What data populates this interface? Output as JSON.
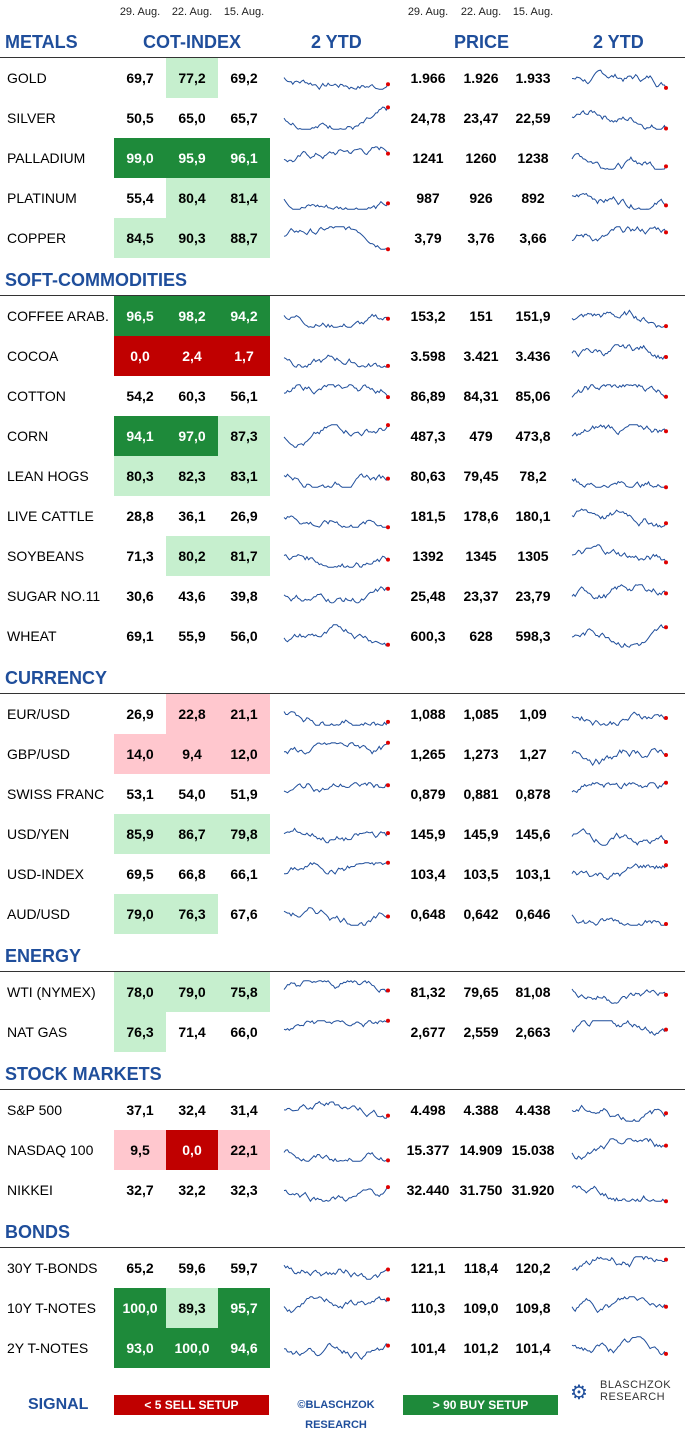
{
  "dates_cot": [
    "29. Aug.",
    "22. Aug.",
    "15. Aug."
  ],
  "dates_price": [
    "29. Aug.",
    "22. Aug.",
    "15. Aug."
  ],
  "headers": {
    "cot": "COT-INDEX",
    "ytd1": "2 YTD",
    "price": "PRICE",
    "ytd2": "2 YTD"
  },
  "sections": [
    {
      "title": "METALS",
      "rows": [
        {
          "name": "GOLD",
          "cot": [
            "69,7",
            "77,2",
            "69,2"
          ],
          "cot_levels": [
            "none",
            "buy-light",
            "none"
          ],
          "price": [
            "1.966",
            "1.926",
            "1.933"
          ]
        },
        {
          "name": "SILVER",
          "cot": [
            "50,5",
            "65,0",
            "65,7"
          ],
          "cot_levels": [
            "none",
            "none",
            "none"
          ],
          "price": [
            "24,78",
            "23,47",
            "22,59"
          ]
        },
        {
          "name": "PALLADIUM",
          "cot": [
            "99,0",
            "95,9",
            "96,1"
          ],
          "cot_levels": [
            "buy",
            "buy",
            "buy"
          ],
          "price": [
            "1241",
            "1260",
            "1238"
          ]
        },
        {
          "name": "PLATINUM",
          "cot": [
            "55,4",
            "80,4",
            "81,4"
          ],
          "cot_levels": [
            "none",
            "buy-light",
            "buy-light"
          ],
          "price": [
            "987",
            "926",
            "892"
          ]
        },
        {
          "name": "COPPER",
          "cot": [
            "84,5",
            "90,3",
            "88,7"
          ],
          "cot_levels": [
            "buy-light",
            "buy-light",
            "buy-light"
          ],
          "price": [
            "3,79",
            "3,76",
            "3,66"
          ]
        }
      ]
    },
    {
      "title": "SOFT-COMMODITIES",
      "rows": [
        {
          "name": "COFFEE ARAB.",
          "cot": [
            "96,5",
            "98,2",
            "94,2"
          ],
          "cot_levels": [
            "buy",
            "buy",
            "buy"
          ],
          "price": [
            "153,2",
            "151",
            "151,9"
          ]
        },
        {
          "name": "COCOA",
          "cot": [
            "0,0",
            "2,4",
            "1,7"
          ],
          "cot_levels": [
            "sell",
            "sell",
            "sell"
          ],
          "price": [
            "3.598",
            "3.421",
            "3.436"
          ]
        },
        {
          "name": "COTTON",
          "cot": [
            "54,2",
            "60,3",
            "56,1"
          ],
          "cot_levels": [
            "none",
            "none",
            "none"
          ],
          "price": [
            "86,89",
            "84,31",
            "85,06"
          ]
        },
        {
          "name": "CORN",
          "cot": [
            "94,1",
            "97,0",
            "87,3"
          ],
          "cot_levels": [
            "buy",
            "buy",
            "buy-light"
          ],
          "price": [
            "487,3",
            "479",
            "473,8"
          ]
        },
        {
          "name": "LEAN HOGS",
          "cot": [
            "80,3",
            "82,3",
            "83,1"
          ],
          "cot_levels": [
            "buy-light",
            "buy-light",
            "buy-light"
          ],
          "price": [
            "80,63",
            "79,45",
            "78,2"
          ]
        },
        {
          "name": "LIVE CATTLE",
          "cot": [
            "28,8",
            "36,1",
            "26,9"
          ],
          "cot_levels": [
            "none",
            "none",
            "none"
          ],
          "price": [
            "181,5",
            "178,6",
            "180,1"
          ]
        },
        {
          "name": "SOYBEANS",
          "cot": [
            "71,3",
            "80,2",
            "81,7"
          ],
          "cot_levels": [
            "none",
            "buy-light",
            "buy-light"
          ],
          "price": [
            "1392",
            "1345",
            "1305"
          ]
        },
        {
          "name": "SUGAR NO.11",
          "cot": [
            "30,6",
            "43,6",
            "39,8"
          ],
          "cot_levels": [
            "none",
            "none",
            "none"
          ],
          "price": [
            "25,48",
            "23,37",
            "23,79"
          ]
        },
        {
          "name": "WHEAT",
          "cot": [
            "69,1",
            "55,9",
            "56,0"
          ],
          "cot_levels": [
            "none",
            "none",
            "none"
          ],
          "price": [
            "600,3",
            "628",
            "598,3"
          ]
        }
      ]
    },
    {
      "title": "CURRENCY",
      "rows": [
        {
          "name": "EUR/USD",
          "cot": [
            "26,9",
            "22,8",
            "21,1"
          ],
          "cot_levels": [
            "none",
            "sell-light",
            "sell-light"
          ],
          "price": [
            "1,088",
            "1,085",
            "1,09"
          ]
        },
        {
          "name": "GBP/USD",
          "cot": [
            "14,0",
            "9,4",
            "12,0"
          ],
          "cot_levels": [
            "sell-light",
            "sell-light",
            "sell-light"
          ],
          "price": [
            "1,265",
            "1,273",
            "1,27"
          ]
        },
        {
          "name": "SWISS FRANC",
          "cot": [
            "53,1",
            "54,0",
            "51,9"
          ],
          "cot_levels": [
            "none",
            "none",
            "none"
          ],
          "price": [
            "0,879",
            "0,881",
            "0,878"
          ]
        },
        {
          "name": "USD/YEN",
          "cot": [
            "85,9",
            "86,7",
            "79,8"
          ],
          "cot_levels": [
            "buy-light",
            "buy-light",
            "buy-light"
          ],
          "price": [
            "145,9",
            "145,9",
            "145,6"
          ]
        },
        {
          "name": "USD-INDEX",
          "cot": [
            "69,5",
            "66,8",
            "66,1"
          ],
          "cot_levels": [
            "none",
            "none",
            "none"
          ],
          "price": [
            "103,4",
            "103,5",
            "103,1"
          ]
        },
        {
          "name": "AUD/USD",
          "cot": [
            "79,0",
            "76,3",
            "67,6"
          ],
          "cot_levels": [
            "buy-light",
            "buy-light",
            "none"
          ],
          "price": [
            "0,648",
            "0,642",
            "0,646"
          ]
        }
      ]
    },
    {
      "title": "ENERGY",
      "rows": [
        {
          "name": "WTI (NYMEX)",
          "cot": [
            "78,0",
            "79,0",
            "75,8"
          ],
          "cot_levels": [
            "buy-light",
            "buy-light",
            "buy-light"
          ],
          "price": [
            "81,32",
            "79,65",
            "81,08"
          ]
        },
        {
          "name": "NAT GAS",
          "cot": [
            "76,3",
            "71,4",
            "66,0"
          ],
          "cot_levels": [
            "buy-light",
            "none",
            "none"
          ],
          "price": [
            "2,677",
            "2,559",
            "2,663"
          ]
        }
      ]
    },
    {
      "title": "STOCK MARKETS",
      "rows": [
        {
          "name": "S&P 500",
          "cot": [
            "37,1",
            "32,4",
            "31,4"
          ],
          "cot_levels": [
            "none",
            "none",
            "none"
          ],
          "price": [
            "4.498",
            "4.388",
            "4.438"
          ]
        },
        {
          "name": "NASDAQ 100",
          "cot": [
            "9,5",
            "0,0",
            "22,1"
          ],
          "cot_levels": [
            "sell-light",
            "sell",
            "sell-light"
          ],
          "price": [
            "15.377",
            "14.909",
            "15.038"
          ]
        },
        {
          "name": "NIKKEI",
          "cot": [
            "32,7",
            "32,2",
            "32,3"
          ],
          "cot_levels": [
            "none",
            "none",
            "none"
          ],
          "price": [
            "32.440",
            "31.750",
            "31.920"
          ]
        }
      ]
    },
    {
      "title": "BONDS",
      "rows": [
        {
          "name": "30Y T-BONDS",
          "cot": [
            "65,2",
            "59,6",
            "59,7"
          ],
          "cot_levels": [
            "none",
            "none",
            "none"
          ],
          "price": [
            "121,1",
            "118,4",
            "120,2"
          ]
        },
        {
          "name": "10Y T-NOTES",
          "cot": [
            "100,0",
            "89,3",
            "95,7"
          ],
          "cot_levels": [
            "buy",
            "buy-light",
            "buy"
          ],
          "price": [
            "110,3",
            "109,0",
            "109,8"
          ]
        },
        {
          "name": "2Y T-NOTES",
          "cot": [
            "93,0",
            "100,0",
            "94,6"
          ],
          "cot_levels": [
            "buy",
            "buy",
            "buy"
          ],
          "price": [
            "101,4",
            "101,2",
            "101,4"
          ]
        }
      ]
    }
  ],
  "legend": {
    "signal": "SIGNAL",
    "sell": "< 5 SELL SETUP",
    "copyright": "©BLASCHZOK RESEARCH",
    "buy": "> 90 BUY SETUP",
    "logo_text": "BLASCHZOK RESEARCH"
  },
  "colors": {
    "header_blue": "#1f4e9b",
    "sell": "#c00000",
    "sell_light": "#ffc7ce",
    "buy": "#1e8a3a",
    "buy_light": "#c6efce",
    "spark_line": "#1f4e9b",
    "spark_dot": "#e00000"
  },
  "chart_data": {
    "type": "table",
    "columns": [
      "29. Aug.",
      "22. Aug.",
      "15. Aug."
    ],
    "note_sparklines": "2 YTD sparklines shown per row for COT-INDEX and PRICE"
  }
}
